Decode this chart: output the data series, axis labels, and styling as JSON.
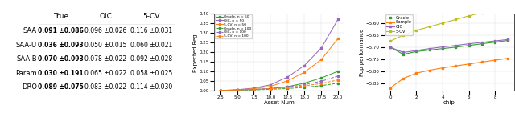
{
  "table": {
    "rows": [
      "SAA",
      "SAA-U",
      "SAA-B",
      "Param",
      "DRO"
    ],
    "true_vals": [
      "0.091",
      "0.036",
      "0.070",
      "0.030",
      "0.089"
    ],
    "true_stds": [
      "0.086",
      "0.093",
      "0.093",
      "0.191",
      "0.075"
    ],
    "oic_vals": [
      "0.096",
      "0.050",
      "0.078",
      "0.065",
      "0.083"
    ],
    "oic_stds": [
      "0.026",
      "0.015",
      "0.022",
      "0.022",
      "0.022"
    ],
    "cv_vals": [
      "0.116",
      "0.060",
      "0.092",
      "0.058",
      "0.114"
    ],
    "cv_stds": [
      "0.031",
      "0.021",
      "0.028",
      "0.025",
      "0.030"
    ]
  },
  "plot1": {
    "xlabel": "Asset Num",
    "ylabel": "Expected Reg.",
    "x": [
      2.5,
      5.0,
      7.5,
      10.0,
      12.5,
      15.0,
      17.5,
      20.0
    ],
    "series": {
      "Oracle_50": [
        0.0,
        0.002,
        0.005,
        0.01,
        0.02,
        0.038,
        0.065,
        0.1
      ],
      "OIC_50": [
        0.0,
        0.004,
        0.012,
        0.03,
        0.07,
        0.13,
        0.22,
        0.37
      ],
      "5CV_50": [
        0.0,
        0.003,
        0.009,
        0.022,
        0.05,
        0.095,
        0.16,
        0.27
      ],
      "Oracle_100": [
        0.0,
        0.001,
        0.003,
        0.006,
        0.01,
        0.016,
        0.025,
        0.038
      ],
      "OIC_100": [
        0.0,
        0.002,
        0.005,
        0.01,
        0.018,
        0.03,
        0.048,
        0.075
      ],
      "5CV_100": [
        0.0,
        0.002,
        0.005,
        0.009,
        0.015,
        0.024,
        0.036,
        0.055
      ]
    },
    "colors": {
      "Oracle": "#2ca02c",
      "OIC": "#9467bd",
      "5CV": "#ff7f0e"
    },
    "ylim": [
      0,
      0.4
    ]
  },
  "plot2": {
    "xlabel": "chip",
    "ylabel": "Pop performance",
    "x": [
      0,
      1,
      2,
      3,
      4,
      5,
      6,
      7,
      8,
      9
    ],
    "series": {
      "Oracle": [
        -5.7,
        -5.73,
        -5.718,
        -5.712,
        -5.706,
        -5.7,
        -5.693,
        -5.686,
        -5.679,
        -5.672
      ],
      "Sample": [
        -5.87,
        -5.83,
        -5.808,
        -5.796,
        -5.786,
        -5.778,
        -5.77,
        -5.762,
        -5.754,
        -5.746
      ],
      "OIC": [
        -5.7,
        -5.722,
        -5.714,
        -5.706,
        -5.699,
        -5.693,
        -5.686,
        -5.68,
        -5.674,
        -5.668
      ],
      "5CV": [
        -5.675,
        -5.65,
        -5.63,
        -5.615,
        -5.6,
        -5.585,
        -5.57,
        -5.556,
        -5.542,
        -5.528
      ]
    },
    "colors": {
      "Oracle": "#2ca02c",
      "Sample": "#ff7f0e",
      "OIC": "#9467bd",
      "5CV": "#bcbd22"
    },
    "ylim": [
      -5.88,
      -5.56
    ]
  },
  "background": "#ffffff"
}
